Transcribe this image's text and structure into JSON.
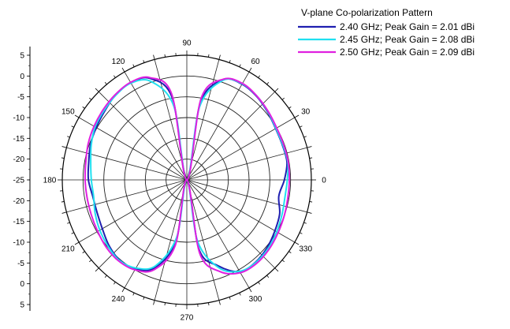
{
  "chart_data": {
    "type": "polar-line",
    "legend": {
      "title": "V-plane Co-polarization Pattern",
      "placement": "top-right"
    },
    "angle_ticks": [
      "0",
      "30",
      "60",
      "90",
      "120",
      "150",
      "180",
      "210",
      "240",
      "270",
      "300",
      "330"
    ],
    "radial_ticks_upper": [
      "5",
      "0",
      "-5",
      "-10",
      "-15",
      "-20",
      "-25"
    ],
    "radial_ticks_lower": [
      "-20",
      "-15",
      "-10",
      "-5",
      "0",
      "5"
    ],
    "radial_range": [
      -25,
      5
    ],
    "grid": true,
    "series": [
      {
        "name": "2.40 GHz; Peak Gain = 2.01 dBi",
        "color": "#1f1fb0",
        "points": [
          [
            0,
            -1.5
          ],
          [
            10,
            -0.5
          ],
          [
            20,
            -0.5
          ],
          [
            30,
            -0.3
          ],
          [
            40,
            0.4
          ],
          [
            50,
            1.2
          ],
          [
            60,
            1.6
          ],
          [
            70,
            0.6
          ],
          [
            80,
            -6
          ],
          [
            90,
            -25
          ],
          [
            100,
            -5
          ],
          [
            110,
            1.0
          ],
          [
            120,
            2.0
          ],
          [
            130,
            1.7
          ],
          [
            140,
            0.8
          ],
          [
            150,
            0.2
          ],
          [
            160,
            -0.3
          ],
          [
            170,
            -1.0
          ],
          [
            180,
            -1.3
          ],
          [
            190,
            -2.0
          ],
          [
            200,
            -2.0
          ],
          [
            210,
            -1.5
          ],
          [
            220,
            -0.5
          ],
          [
            230,
            0.2
          ],
          [
            240,
            -0.3
          ],
          [
            250,
            -2.5
          ],
          [
            260,
            -10
          ],
          [
            270,
            -25
          ],
          [
            280,
            -8
          ],
          [
            290,
            -3
          ],
          [
            300,
            0.5
          ],
          [
            310,
            0.8
          ],
          [
            320,
            0.3
          ],
          [
            330,
            -0.5
          ],
          [
            340,
            -1.2
          ],
          [
            350,
            -2.5
          ],
          [
            360,
            -1.5
          ]
        ]
      },
      {
        "name": "2.45 GHz; Peak Gain = 2.08 dBi",
        "color": "#20e0f0",
        "points": [
          [
            0,
            -0.8
          ],
          [
            10,
            -0.3
          ],
          [
            20,
            -0.4
          ],
          [
            30,
            -0.2
          ],
          [
            40,
            0.5
          ],
          [
            50,
            1.3
          ],
          [
            60,
            1.7
          ],
          [
            70,
            0.5
          ],
          [
            80,
            -7
          ],
          [
            90,
            -25
          ],
          [
            100,
            -7
          ],
          [
            110,
            0.2
          ],
          [
            120,
            1.9
          ],
          [
            130,
            1.6
          ],
          [
            140,
            1.0
          ],
          [
            150,
            0.5
          ],
          [
            160,
            -0.5
          ],
          [
            170,
            -1.5
          ],
          [
            180,
            -2.0
          ],
          [
            190,
            -2.2
          ],
          [
            200,
            -1.5
          ],
          [
            210,
            -0.8
          ],
          [
            220,
            -0.2
          ],
          [
            230,
            0.3
          ],
          [
            240,
            -0.5
          ],
          [
            250,
            -3
          ],
          [
            260,
            -11
          ],
          [
            270,
            -25
          ],
          [
            280,
            -10
          ],
          [
            290,
            -2.5
          ],
          [
            300,
            0.4
          ],
          [
            310,
            0.9
          ],
          [
            320,
            0.6
          ],
          [
            330,
            0
          ],
          [
            340,
            -0.6
          ],
          [
            350,
            -1.0
          ],
          [
            360,
            -0.8
          ]
        ]
      },
      {
        "name": "2.50 GHz; Peak Gain = 2.09 dBi",
        "color": "#e020e0",
        "points": [
          [
            0,
            -0.3
          ],
          [
            10,
            -0.2
          ],
          [
            20,
            -0.2
          ],
          [
            30,
            0
          ],
          [
            40,
            0.6
          ],
          [
            50,
            1.3
          ],
          [
            60,
            1.8
          ],
          [
            70,
            0.8
          ],
          [
            80,
            -5
          ],
          [
            90,
            -25
          ],
          [
            100,
            -4
          ],
          [
            110,
            1.2
          ],
          [
            120,
            2.1
          ],
          [
            130,
            1.8
          ],
          [
            140,
            1.3
          ],
          [
            150,
            0.8
          ],
          [
            160,
            0.3
          ],
          [
            170,
            -0.3
          ],
          [
            180,
            -0.5
          ],
          [
            190,
            -0.6
          ],
          [
            200,
            -0.5
          ],
          [
            210,
            -0.2
          ],
          [
            220,
            0.3
          ],
          [
            230,
            0.5
          ],
          [
            240,
            0
          ],
          [
            250,
            -2
          ],
          [
            260,
            -9
          ],
          [
            270,
            -25
          ],
          [
            280,
            -7
          ],
          [
            290,
            -1.5
          ],
          [
            300,
            0.8
          ],
          [
            310,
            1.2
          ],
          [
            320,
            0.9
          ],
          [
            330,
            0.4
          ],
          [
            340,
            0
          ],
          [
            350,
            -0.3
          ],
          [
            360,
            -0.3
          ]
        ]
      }
    ]
  }
}
